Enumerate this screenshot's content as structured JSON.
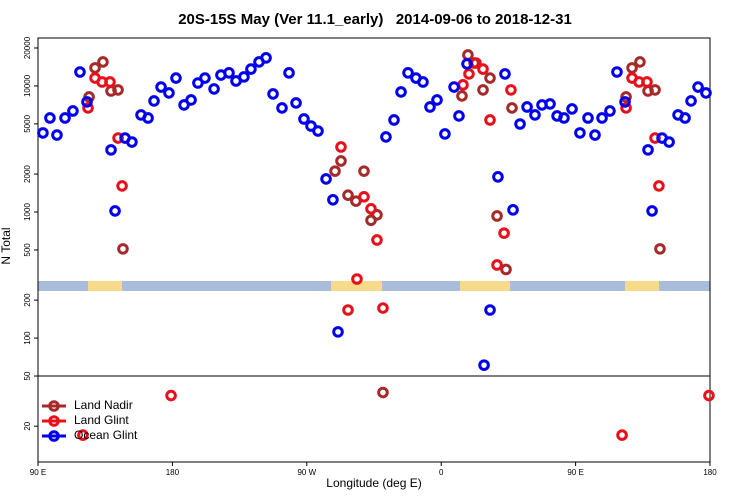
{
  "chart_data": {
    "type": "scatter",
    "title": "20S-15S May (Ver 11.1_early)   2014-09-06 to 2018-12-31",
    "xlabel": "Longitude (deg E)",
    "ylabel": "N Total",
    "xlim": [
      90,
      540
    ],
    "xticks": [
      {
        "value": 90,
        "label": "90 E"
      },
      180,
      {
        "value": 270,
        "label": "90 W"
      },
      {
        "value": 360,
        "label": "0"
      },
      {
        "value": 450,
        "label": "90 E"
      },
      {
        "value": 540,
        "label": "180"
      }
    ],
    "ylim": [
      10.4,
      24000
    ],
    "yticks": [
      20,
      50,
      100,
      200,
      500,
      1000,
      2000,
      5000,
      10000,
      20000
    ],
    "log_y": true,
    "legend": "bottom left",
    "series": [
      {
        "name": "Land Nadir",
        "color": "#a52a2a",
        "x": [
          124.2,
          128.2,
          133.5,
          138.9,
          143.6,
          146.9,
          288.9,
          292.9,
          297.6,
          302.9,
          308.3,
          313,
          317,
          321,
          373.9,
          377.9,
          382,
          388,
          392.7,
          397.4,
          403.4,
          407.4,
          483.8,
          487.8,
          493.1,
          498.5,
          503.2,
          506.5
        ],
        "values": [
          8180,
          13900,
          15500,
          9120,
          9300,
          510,
          2110,
          2540,
          1360,
          1220,
          2110,
          860,
          950,
          37,
          8330,
          17600,
          15200,
          9300,
          11550,
          930,
          350,
          6690,
          8180,
          13900,
          15500,
          9120,
          9300,
          510
        ]
      },
      {
        "name": "Land Glint",
        "color": "#e8101a",
        "x": [
          120.1,
          123.5,
          128.2,
          132.9,
          138.2,
          143.6,
          146.3,
          179.1,
          292.9,
          297.6,
          303.6,
          308.3,
          313,
          317,
          321,
          374.6,
          378.6,
          383.3,
          388,
          392.7,
          397.4,
          402.1,
          406.7,
          481.1,
          483.8,
          487.8,
          492.5,
          497.8,
          503.2,
          505.8,
          539.3
        ],
        "values": [
          17,
          6690,
          11550,
          10750,
          10750,
          3860,
          1610,
          35,
          3280,
          167,
          294,
          1320,
          1060,
          600,
          173,
          10200,
          12450,
          15200,
          13600,
          5370,
          380,
          680,
          9300,
          17,
          6690,
          11550,
          10750,
          10750,
          3860,
          1610,
          35
        ]
      },
      {
        "name": "Ocean Glint",
        "color": "#0000ee",
        "x": [
          93.3,
          98,
          102.7,
          108.1,
          113.4,
          118.1,
          122.8,
          138.9,
          141.6,
          148.3,
          152.9,
          159,
          163.7,
          167.7,
          172.4,
          177.7,
          182.4,
          187.8,
          192.5,
          197.1,
          201.8,
          207.9,
          212.5,
          217.9,
          222.6,
          227.9,
          232.6,
          238,
          242.7,
          247.4,
          253.4,
          258.1,
          262.8,
          268.1,
          272.8,
          277.5,
          282.9,
          287.5,
          290.9,
          323,
          328.4,
          333.1,
          337.8,
          343.1,
          347.8,
          352.5,
          357.2,
          362.5,
          368.6,
          371.9,
          377.3,
          388.7,
          392.7,
          398,
          402.7,
          408.1,
          412.8,
          417.5,
          422.8,
          427.5,
          432.9,
          437.6,
          442.2,
          447.6,
          452.9,
          458.3,
          463,
          467.7,
          473,
          477.7,
          483.1,
          498.5,
          501.2,
          507.9,
          512.6,
          518.6,
          523.3,
          527.3,
          532,
          537.3
        ],
        "values": [
          4240,
          5570,
          4080,
          5570,
          6330,
          12900,
          7470,
          3110,
          1020,
          3860,
          3590,
          5890,
          5570,
          7600,
          9800,
          8800,
          11550,
          7070,
          7740,
          10550,
          11550,
          9470,
          12200,
          12700,
          10950,
          11800,
          13600,
          15500,
          16700,
          8640,
          6690,
          12700,
          7330,
          5470,
          4810,
          4390,
          1830,
          1250,
          112,
          3940,
          5370,
          8960,
          12700,
          11550,
          10750,
          6810,
          7740,
          4160,
          9800,
          5780,
          14950,
          61,
          167,
          1900,
          12450,
          1040,
          4990,
          6810,
          5890,
          7070,
          7200,
          5780,
          5570,
          6570,
          4240,
          5570,
          4080,
          5570,
          6330,
          12900,
          7470,
          3110,
          1020,
          3860,
          3590,
          5890,
          5570,
          7600,
          9800,
          8800
        ]
      }
    ]
  }
}
